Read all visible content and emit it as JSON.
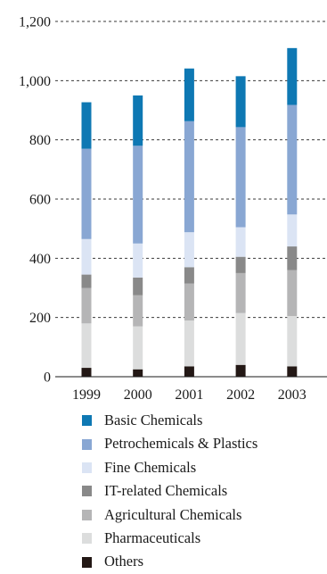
{
  "chart_data": {
    "type": "bar",
    "stacked": true,
    "categories": [
      "1999",
      "2000",
      "2001",
      "2002",
      "2003"
    ],
    "series": [
      {
        "name": "Others",
        "color": "#231815",
        "values": [
          30,
          25,
          35,
          40,
          35
        ]
      },
      {
        "name": "Pharmaceuticals",
        "color": "#dcdddd",
        "values": [
          150,
          145,
          155,
          175,
          170
        ]
      },
      {
        "name": "Agricultural Chemicals",
        "color": "#b5b5b6",
        "values": [
          120,
          105,
          125,
          135,
          155
        ]
      },
      {
        "name": "IT-related Chemicals",
        "color": "#898989",
        "values": [
          45,
          60,
          55,
          55,
          80
        ]
      },
      {
        "name": "Fine Chemicals",
        "color": "#dbe4f4",
        "values": [
          120,
          115,
          118,
          100,
          108
        ]
      },
      {
        "name": "Petrochemicals & Plastics",
        "color": "#89a7d3",
        "values": [
          305,
          330,
          375,
          338,
          370
        ]
      },
      {
        "name": "Basic Chemicals",
        "color": "#0e78b3",
        "values": [
          157,
          170,
          178,
          172,
          192
        ]
      }
    ],
    "yticks": [
      0,
      200,
      400,
      600,
      800,
      1000,
      1200
    ],
    "ytick_labels": [
      "0",
      "200",
      "400",
      "600",
      "800",
      "1,000",
      "1,200"
    ],
    "ylim": [
      0,
      1200
    ],
    "grid": "horizontal dashed",
    "legend": {
      "placement": "bottom",
      "order": [
        "Basic Chemicals",
        "Petrochemicals & Plastics",
        "Fine Chemicals",
        "IT-related Chemicals",
        "Agricultural Chemicals",
        "Pharmaceuticals",
        "Others"
      ]
    },
    "title": "",
    "xlabel": "",
    "ylabel": ""
  }
}
